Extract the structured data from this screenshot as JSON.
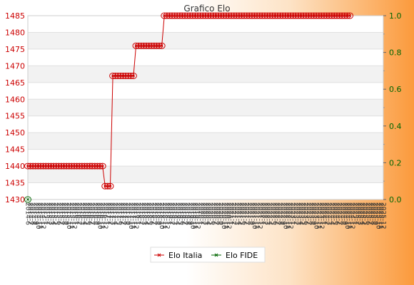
{
  "chart_data": {
    "type": "line",
    "title": "Grafico Elo",
    "left_axis": {
      "ylim": [
        1430,
        1485
      ],
      "ticks": [
        1430,
        1435,
        1440,
        1445,
        1450,
        1455,
        1460,
        1465,
        1470,
        1475,
        1480,
        1485
      ],
      "color": "#cc0000"
    },
    "right_axis": {
      "ylim": [
        0,
        1.0
      ],
      "ticks": [
        "0.0",
        "0.2",
        "0.4",
        "0.6",
        "0.8",
        "1.0"
      ],
      "color": "#006600"
    },
    "x_tick_labels": [
      "2014-6",
      "2014-7",
      "2014-8",
      "2014-9",
      "2014-10",
      "2014-11",
      "2014-12",
      "2015-1",
      "2015-2",
      "2015-3",
      "2015-4",
      "2015-5",
      "2015-6",
      "2015-7",
      "2015-8",
      "2015-9",
      "2015-10",
      "2015-11",
      "2015-12",
      "2016-1",
      "2016-2",
      "2016-3",
      "2016-4",
      "2016-5",
      "2016-6",
      "2016-7",
      "2016-8",
      "2016-9",
      "2016-10",
      "2016-11",
      "2016-12",
      "2017-1",
      "2017-2",
      "2017-3",
      "2017-4",
      "2017-5",
      "2017-6",
      "2017-7",
      "2017-8",
      "2017-9",
      "2017-10",
      "2017-11",
      "2017-12",
      "2018-1",
      "2018-2",
      "2018-3",
      "2018-4",
      "2018-5",
      "2018-6",
      "2018-7",
      "2018-8",
      "2018-9",
      "2018-10",
      "2018-11",
      "2018-12",
      "2019-1",
      "2019-2",
      "2019-3",
      "2019-4",
      "2019-5",
      "2019-6",
      "2019-7",
      "2019-8",
      "2019-9",
      "2019-10",
      "2019-11",
      "2019-12",
      "2020-1",
      "2020-2",
      "2020-3",
      "2020-4",
      "2020-5",
      "2020-6",
      "2020-7",
      "2020-8",
      "2020-9",
      "2020-10",
      "2020-11",
      "2020-12",
      "2021-1",
      "2021-2",
      "2021-3",
      "2021-4",
      "2021-5",
      "2021-6",
      "2021-7",
      "2021-8",
      "2021-9",
      "2021-10",
      "2021-11",
      "2021-12",
      "2022-1",
      "2022-2",
      "2022-3",
      "2022-4",
      "2022-5",
      "2022-6",
      "2022-7",
      "2022-8",
      "2022-9",
      "2022-10",
      "2022-11",
      "2022-12",
      "2023-1",
      "2023-2",
      "2023-3",
      "2023-4",
      "2023-5",
      "2023-6",
      "2023-7",
      "2023-8",
      "2023-9",
      "2023-10",
      "2023-11",
      "2023-12",
      "2024-1",
      "2024-2",
      "2024-3",
      "2024-4",
      "2024-5",
      "2024-6",
      "2024-7",
      "2024-8",
      "2024-9",
      "2024-10",
      "2024-11",
      "2024-12",
      "2025-1",
      "2025-2",
      "2025-3",
      "2025-4",
      "2025-5",
      "2025-6",
      "2025-7",
      "2025-8",
      "2025-9",
      "2025-10",
      "2025-11",
      "2025-12"
    ],
    "series": [
      {
        "name": "Elo Italia",
        "color": "#cc0000",
        "axis": "left",
        "runs": [
          {
            "count": 30,
            "value": 1440
          },
          {
            "count": 3,
            "value": 1434
          },
          {
            "count": 9,
            "value": 1467
          },
          {
            "count": 11,
            "value": 1476
          },
          {
            "count": 73,
            "value": 1485
          }
        ]
      },
      {
        "name": "Elo FIDE",
        "color": "#006600",
        "axis": "right",
        "runs": [
          {
            "count": 1,
            "value": 0
          }
        ]
      }
    ],
    "grid": true,
    "legend_position": "bottom-center"
  }
}
